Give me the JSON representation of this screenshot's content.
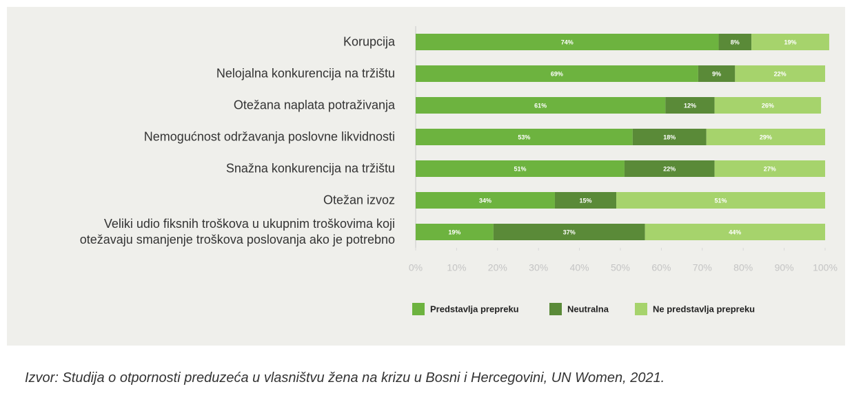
{
  "chart_data": {
    "type": "stacked_bar_horizontal",
    "categories": [
      "Korupcija",
      "Nelojalna konkurencija na tržištu",
      "Otežana naplata potraživanja",
      "Nemogućnost održavanja poslovne likvidnosti",
      "Snažna konkurencija na tržištu",
      "Otežan izvoz",
      "Veliki udio fiksnih troškova u ukupnim troškovima koji\notežavaju smanjenje troškova poslovanja ako je potrebno"
    ],
    "series": [
      {
        "name": "Predstavlja prepreku",
        "color": "#6db33f",
        "values": [
          74,
          69,
          61,
          53,
          51,
          34,
          19
        ],
        "value_labels": [
          "74%",
          "69%",
          "61%",
          "53%",
          "51%",
          "34%",
          "19%"
        ]
      },
      {
        "name": "Neutralna",
        "color": "#5a8a38",
        "values": [
          8,
          9,
          12,
          18,
          22,
          15,
          37
        ],
        "value_labels": [
          "8%",
          "9%",
          "12%",
          "18%",
          "22%",
          "15%",
          "37%"
        ]
      },
      {
        "name": "Ne predstavlja prepreku",
        "color": "#a6d36c",
        "values": [
          19,
          22,
          26,
          29,
          27,
          51,
          44
        ],
        "value_labels": [
          "19%",
          "22%",
          "26%",
          "29%",
          "27%",
          "51%",
          "44%"
        ]
      }
    ],
    "xlim": [
      0,
      100
    ],
    "xticks": [
      {
        "value": 0,
        "label": "0%"
      },
      {
        "value": 10,
        "label": "10%"
      },
      {
        "value": 20,
        "label": "20%"
      },
      {
        "value": 30,
        "label": "30%"
      },
      {
        "value": 40,
        "label": "40%"
      },
      {
        "value": 50,
        "label": "50%"
      },
      {
        "value": 60,
        "label": "60%"
      },
      {
        "value": 70,
        "label": "70%"
      },
      {
        "value": 80,
        "label": "80%"
      },
      {
        "value": 90,
        "label": "90%"
      },
      {
        "value": {
          "value": 100,
          "label": "100%"
        }
      }
    ],
    "legend": "bottom",
    "source": "Izvor: Studija o otpornosti preduzeća u vlasništvu žena na krizu u Bosni i Hercegovini, UN Women, 2021."
  }
}
